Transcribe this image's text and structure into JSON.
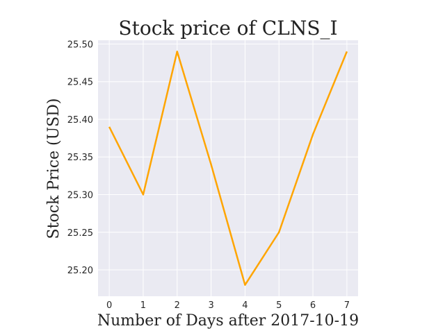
{
  "chart_data": {
    "type": "line",
    "title": "Stock price of CLNS_I",
    "xlabel": "Number of Days after 2017-10-19",
    "ylabel": "Stock Price (USD)",
    "x": [
      0,
      1,
      2,
      3,
      4,
      5,
      6,
      7
    ],
    "series": [
      {
        "values": [
          25.39,
          25.3,
          25.49,
          25.34,
          25.18,
          25.25,
          25.38,
          25.49
        ],
        "color": "#FFA500"
      }
    ],
    "xlim": [
      -0.33,
      7.33
    ],
    "ylim": [
      25.165,
      25.505
    ],
    "xticks": [
      "0",
      "1",
      "2",
      "3",
      "4",
      "5",
      "6",
      "7"
    ],
    "yticks": [
      "25.20",
      "25.25",
      "25.30",
      "25.35",
      "25.40",
      "25.45",
      "25.50"
    ],
    "grid": true,
    "background_color": "#EAEAF2",
    "grid_color": "#FFFFFF"
  }
}
